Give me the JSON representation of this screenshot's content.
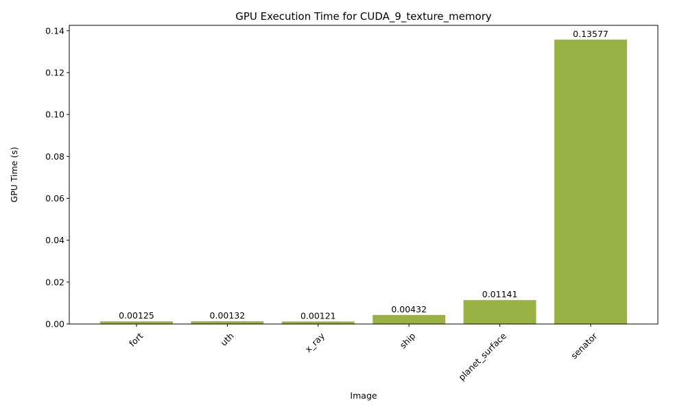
{
  "chart_data": {
    "type": "bar",
    "title": "GPU Execution Time for CUDA_9_texture_memory",
    "xlabel": "Image",
    "ylabel": "GPU Time (s)",
    "categories": [
      "fort",
      "uth",
      "x_ray",
      "ship",
      "planet_surface",
      "senator"
    ],
    "values": [
      0.00125,
      0.00132,
      0.00121,
      0.00432,
      0.01141,
      0.13577
    ],
    "value_labels": [
      "0.00125",
      "0.00132",
      "0.00121",
      "0.00432",
      "0.01141",
      "0.13577"
    ],
    "ylim": [
      0,
      0.14256
    ],
    "yticks": [
      0,
      0.02,
      0.04,
      0.06,
      0.08,
      0.1,
      0.12,
      0.14
    ],
    "ytick_labels": [
      "0.00",
      "0.02",
      "0.04",
      "0.06",
      "0.08",
      "0.10",
      "0.12",
      "0.14"
    ],
    "bar_color": "#9ab146",
    "grid": false,
    "legend": "none"
  }
}
